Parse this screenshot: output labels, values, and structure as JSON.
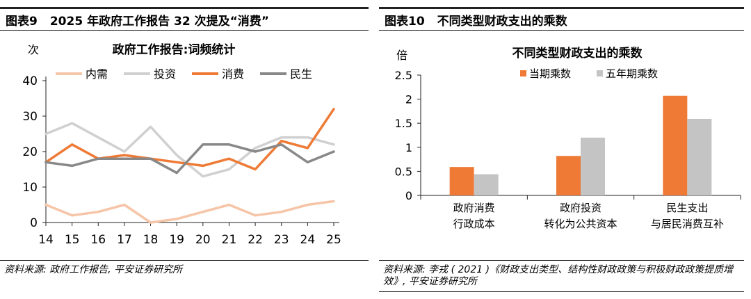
{
  "left": {
    "fig_label": "图表9",
    "fig_title": "2025 年政府工作报告 32 次提及“消费”",
    "source": "资料来源: 政府工作报告, 平安证券研究所"
  },
  "right": {
    "fig_label": "图表10",
    "fig_title": "不同类型财政支出的乘数",
    "source": "资料来源: 李戎 ( 2021 )《财政支出类型、结构性财政政策与积极财政政策提质增效》, 平安证券研究所"
  },
  "chart_data": [
    {
      "type": "line",
      "title": "政府工作报告:词频统计",
      "ylabel": "次",
      "xlabel": "",
      "x": [
        14,
        15,
        16,
        17,
        18,
        19,
        20,
        21,
        22,
        23,
        24,
        25
      ],
      "ylim": [
        0,
        40
      ],
      "yticks": [
        0,
        10,
        20,
        30,
        40
      ],
      "grid": false,
      "legend_position": "top",
      "series": [
        {
          "name": "内需",
          "color": "#F6C5A8",
          "values": [
            5,
            2,
            3,
            5,
            0,
            1,
            3,
            5,
            2,
            3,
            5,
            6
          ]
        },
        {
          "name": "投资",
          "color": "#D0D0D0",
          "values": [
            25,
            28,
            24,
            20,
            27,
            19,
            13,
            15,
            21,
            24,
            24,
            22
          ]
        },
        {
          "name": "消费",
          "color": "#EE7A35",
          "values": [
            17,
            22,
            18,
            19,
            18,
            17,
            16,
            18,
            15,
            23,
            21,
            32
          ]
        },
        {
          "name": "民生",
          "color": "#888888",
          "values": [
            17,
            16,
            18,
            18,
            18,
            14,
            22,
            22,
            20,
            22,
            17,
            20
          ]
        }
      ]
    },
    {
      "type": "bar",
      "title": "不同类型财政支出的乘数",
      "ylabel": "倍",
      "categories": [
        [
          "政府消费",
          "行政成本"
        ],
        [
          "政府投资",
          "转化为公共资本"
        ],
        [
          "民生支出",
          "与居民消费互补"
        ]
      ],
      "ylim": [
        0,
        2.5
      ],
      "yticks": [
        0,
        0.5,
        1,
        1.5,
        2,
        2.5
      ],
      "grid": false,
      "legend_position": "top",
      "series": [
        {
          "name": "当期乘数",
          "color": "#EE7A35",
          "values": [
            0.59,
            0.82,
            2.07
          ]
        },
        {
          "name": "五年期乘数",
          "color": "#C4C4C4",
          "values": [
            0.44,
            1.2,
            1.59
          ]
        }
      ]
    }
  ]
}
